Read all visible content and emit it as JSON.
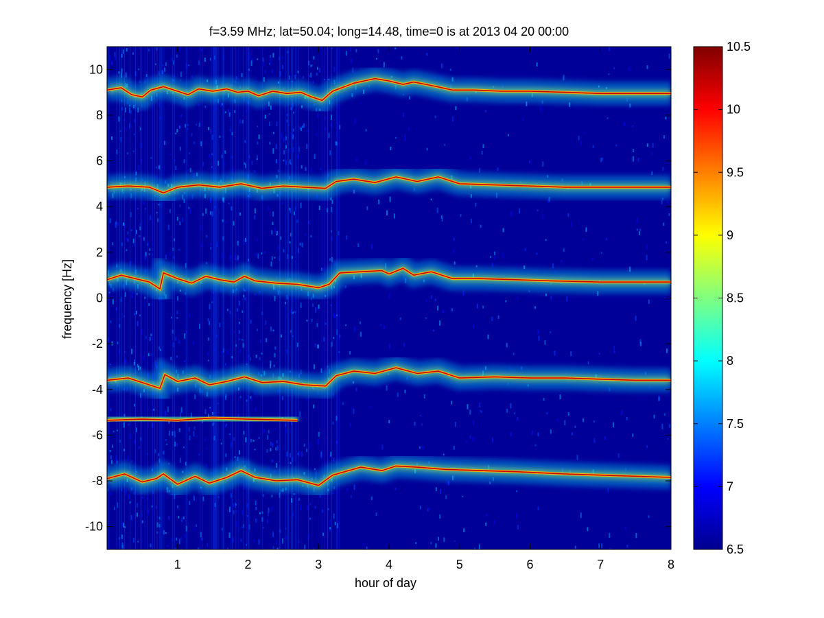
{
  "chart_data": {
    "type": "heatmap",
    "title": "f=3.59 MHz;  lat=50.04; long=14.48, time=0 is at 2013 04 20 00:00",
    "xlabel": "hour of day",
    "ylabel": "frequency [Hz]",
    "xlim": [
      0,
      8
    ],
    "ylim": [
      -11,
      11
    ],
    "xticks": [
      1,
      2,
      3,
      4,
      5,
      6,
      7,
      8
    ],
    "yticks": [
      -10,
      -8,
      -6,
      -4,
      -2,
      0,
      2,
      4,
      6,
      8,
      10
    ],
    "colorbar": {
      "colormap": "jet",
      "clim": [
        6.5,
        10.5
      ],
      "ticks": [
        6.5,
        7,
        7.5,
        8,
        8.5,
        9,
        9.5,
        10,
        10.5
      ]
    },
    "grid": false,
    "background_level": 6.6,
    "traces": [
      {
        "name": "",
        "points": [
          [
            0,
            9.1
          ],
          [
            0.2,
            9.2
          ],
          [
            0.35,
            8.9
          ],
          [
            0.5,
            8.8
          ],
          [
            0.62,
            9.1
          ],
          [
            0.8,
            9.25
          ],
          [
            1.0,
            9.05
          ],
          [
            1.15,
            8.9
          ],
          [
            1.3,
            9.15
          ],
          [
            1.5,
            9.05
          ],
          [
            1.7,
            9.15
          ],
          [
            1.85,
            9.0
          ],
          [
            2.0,
            9.05
          ],
          [
            2.15,
            8.85
          ],
          [
            2.35,
            9.05
          ],
          [
            2.55,
            8.95
          ],
          [
            2.75,
            9.0
          ],
          [
            2.9,
            8.8
          ],
          [
            3.05,
            8.65
          ],
          [
            3.2,
            9.05
          ],
          [
            3.5,
            9.4
          ],
          [
            3.8,
            9.6
          ],
          [
            4.0,
            9.5
          ],
          [
            4.2,
            9.35
          ],
          [
            4.35,
            9.45
          ],
          [
            4.6,
            9.3
          ],
          [
            4.9,
            9.1
          ],
          [
            5.2,
            9.1
          ],
          [
            5.6,
            9.05
          ],
          [
            6.0,
            9.05
          ],
          [
            6.5,
            9.0
          ],
          [
            7.0,
            8.95
          ],
          [
            7.5,
            8.95
          ],
          [
            8.0,
            8.95
          ]
        ]
      },
      {
        "name": "",
        "points": [
          [
            0,
            4.85
          ],
          [
            0.3,
            4.9
          ],
          [
            0.6,
            4.85
          ],
          [
            0.8,
            4.6
          ],
          [
            1.0,
            4.85
          ],
          [
            1.3,
            4.95
          ],
          [
            1.6,
            4.85
          ],
          [
            1.9,
            5.0
          ],
          [
            2.2,
            4.8
          ],
          [
            2.5,
            4.9
          ],
          [
            2.8,
            4.85
          ],
          [
            3.1,
            4.8
          ],
          [
            3.25,
            5.1
          ],
          [
            3.5,
            5.2
          ],
          [
            3.8,
            5.05
          ],
          [
            4.1,
            5.3
          ],
          [
            4.4,
            5.1
          ],
          [
            4.7,
            5.3
          ],
          [
            5.0,
            5.0
          ],
          [
            5.5,
            4.95
          ],
          [
            6.0,
            4.9
          ],
          [
            6.5,
            4.85
          ],
          [
            7.0,
            4.85
          ],
          [
            8.0,
            4.85
          ]
        ]
      },
      {
        "name": "",
        "points": [
          [
            0,
            0.8
          ],
          [
            0.2,
            1.0
          ],
          [
            0.4,
            0.85
          ],
          [
            0.6,
            0.7
          ],
          [
            0.75,
            0.4
          ],
          [
            0.8,
            1.1
          ],
          [
            1.0,
            0.85
          ],
          [
            1.2,
            0.65
          ],
          [
            1.4,
            0.95
          ],
          [
            1.6,
            0.8
          ],
          [
            1.8,
            0.7
          ],
          [
            1.95,
            0.95
          ],
          [
            2.1,
            0.75
          ],
          [
            2.4,
            0.65
          ],
          [
            2.7,
            0.6
          ],
          [
            3.0,
            0.45
          ],
          [
            3.15,
            0.6
          ],
          [
            3.3,
            1.1
          ],
          [
            3.6,
            1.15
          ],
          [
            3.9,
            1.2
          ],
          [
            4.0,
            1.05
          ],
          [
            4.2,
            1.3
          ],
          [
            4.35,
            1.0
          ],
          [
            4.6,
            1.15
          ],
          [
            4.9,
            0.85
          ],
          [
            5.3,
            0.85
          ],
          [
            5.8,
            0.8
          ],
          [
            6.3,
            0.75
          ],
          [
            7.0,
            0.7
          ],
          [
            8.0,
            0.7
          ]
        ]
      },
      {
        "name": "",
        "points": [
          [
            0,
            -3.6
          ],
          [
            0.3,
            -3.5
          ],
          [
            0.6,
            -3.8
          ],
          [
            0.75,
            -3.95
          ],
          [
            0.82,
            -3.35
          ],
          [
            1.0,
            -3.65
          ],
          [
            1.25,
            -3.5
          ],
          [
            1.45,
            -3.8
          ],
          [
            1.7,
            -3.65
          ],
          [
            1.95,
            -3.45
          ],
          [
            2.2,
            -3.7
          ],
          [
            2.5,
            -3.65
          ],
          [
            2.8,
            -3.8
          ],
          [
            3.1,
            -3.85
          ],
          [
            3.25,
            -3.4
          ],
          [
            3.5,
            -3.2
          ],
          [
            3.8,
            -3.3
          ],
          [
            4.1,
            -3.05
          ],
          [
            4.4,
            -3.3
          ],
          [
            4.7,
            -3.2
          ],
          [
            5.0,
            -3.5
          ],
          [
            5.5,
            -3.45
          ],
          [
            6.0,
            -3.5
          ],
          [
            6.5,
            -3.5
          ],
          [
            7.0,
            -3.55
          ],
          [
            7.5,
            -3.6
          ],
          [
            8.0,
            -3.6
          ]
        ]
      },
      {
        "name": "",
        "points": [
          [
            0,
            -5.35
          ],
          [
            0.5,
            -5.3
          ],
          [
            1.0,
            -5.35
          ],
          [
            1.5,
            -5.25
          ],
          [
            2.0,
            -5.3
          ],
          [
            2.7,
            -5.35
          ]
        ]
      },
      {
        "name": "",
        "points": [
          [
            0,
            -7.9
          ],
          [
            0.25,
            -7.7
          ],
          [
            0.5,
            -8.05
          ],
          [
            0.7,
            -7.9
          ],
          [
            0.8,
            -7.7
          ],
          [
            1.0,
            -8.15
          ],
          [
            1.25,
            -7.8
          ],
          [
            1.45,
            -8.1
          ],
          [
            1.7,
            -7.85
          ],
          [
            1.9,
            -7.55
          ],
          [
            2.1,
            -7.85
          ],
          [
            2.4,
            -8.0
          ],
          [
            2.7,
            -7.95
          ],
          [
            3.0,
            -8.2
          ],
          [
            3.2,
            -7.75
          ],
          [
            3.6,
            -7.4
          ],
          [
            3.9,
            -7.55
          ],
          [
            4.1,
            -7.35
          ],
          [
            4.4,
            -7.4
          ],
          [
            4.8,
            -7.5
          ],
          [
            5.3,
            -7.55
          ],
          [
            5.8,
            -7.6
          ],
          [
            6.5,
            -7.7
          ],
          [
            7.0,
            -7.75
          ],
          [
            8.0,
            -7.85
          ]
        ]
      }
    ]
  }
}
